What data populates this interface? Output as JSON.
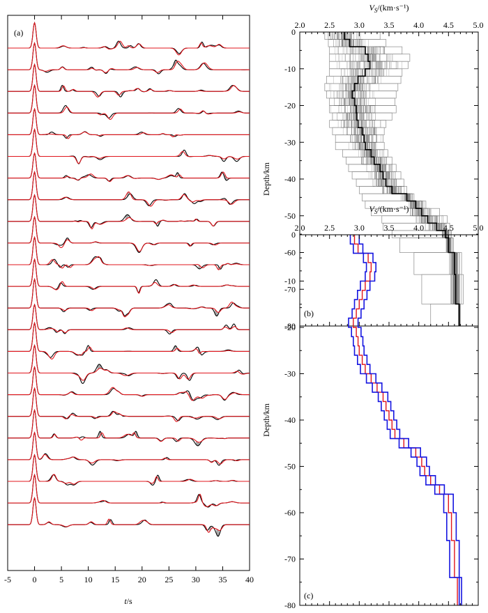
{
  "chart_data": [
    {
      "panel": "a",
      "type": "line",
      "panel_label": "(a)",
      "xlabel": "t/s",
      "xlabel_main": "t",
      "xlabel_unit": "/s",
      "xlim": [
        -5,
        40
      ],
      "xticks": [
        -5,
        0,
        5,
        10,
        15,
        20,
        25,
        30,
        35,
        40
      ],
      "trace_count": 23,
      "series": [
        {
          "name": "observed",
          "color": "#000000"
        },
        {
          "name": "synthetic",
          "color": "#e0141b"
        }
      ],
      "misfit_fill_color": "#a8a8a8",
      "grid": false,
      "legend": "none"
    },
    {
      "panel": "b",
      "type": "line",
      "panel_label": "(b)",
      "xlabel_main": "V",
      "xlabel_sub": "S",
      "xlabel_unit": "/(km·s⁻¹)",
      "ylabel": "Depth/km",
      "xlim": [
        2.0,
        5.0
      ],
      "ylim": [
        -80,
        0
      ],
      "xticks": [
        "2.0",
        "2.5",
        "3.0",
        "3.5",
        "4.0",
        "4.5",
        "5.0"
      ],
      "yticks": [
        "0",
        "-10",
        "-20",
        "-30",
        "-40",
        "-50",
        "-60",
        "-70",
        "-80"
      ],
      "layer_boundaries_km": [
        0,
        -2,
        -4,
        -6,
        -8,
        -10,
        -12,
        -14,
        -16,
        -18,
        -20,
        -22,
        -24,
        -26,
        -28,
        -30,
        -32,
        -34,
        -36,
        -38,
        -40,
        -42,
        -44,
        -46,
        -48,
        -50,
        -52,
        -54,
        -56,
        -60,
        -66,
        -74,
        -80
      ],
      "ensemble_range": {
        "vs_min": [
          2.42,
          2.48,
          2.5,
          2.5,
          2.5,
          2.5,
          2.45,
          2.42,
          2.45,
          2.5,
          2.5,
          2.55,
          2.5,
          2.55,
          2.6,
          2.6,
          2.72,
          2.78,
          2.82,
          2.88,
          2.95,
          3.0,
          3.05,
          3.1,
          3.2,
          3.38,
          3.4,
          3.55,
          3.68,
          3.92,
          4.05,
          4.2
        ],
        "vs_max": [
          3.35,
          3.45,
          3.72,
          3.85,
          3.82,
          3.72,
          3.7,
          3.65,
          3.62,
          3.6,
          3.62,
          3.55,
          3.45,
          3.42,
          3.4,
          3.42,
          3.48,
          3.55,
          3.62,
          3.7,
          3.75,
          3.8,
          3.92,
          4.12,
          4.35,
          4.48,
          4.52,
          4.55,
          4.58,
          4.72,
          4.75,
          4.7
        ]
      },
      "density_peak": {
        "vs": [
          2.75,
          2.84,
          3.1,
          3.15,
          3.18,
          3.1,
          2.98,
          2.92,
          2.88,
          2.92,
          2.95,
          2.96,
          2.98,
          3.05,
          3.08,
          3.1,
          3.2,
          3.25,
          3.35,
          3.4,
          3.45,
          3.55,
          3.8,
          3.95,
          4.05,
          4.15,
          4.3,
          4.45,
          4.5,
          4.6,
          4.62,
          4.68
        ]
      },
      "grid": false,
      "legend": "none"
    },
    {
      "panel": "c",
      "type": "line",
      "panel_label": "(c)",
      "xlabel_main": "V",
      "xlabel_sub": "S",
      "xlabel_unit": "/(km·s⁻¹)",
      "ylabel": "Depth/km",
      "xlim": [
        2.0,
        5.0
      ],
      "ylim": [
        -80,
        0
      ],
      "xticks": [
        "2.0",
        "2.5",
        "3.0",
        "3.5",
        "4.0",
        "4.5",
        "5.0"
      ],
      "yticks": [
        "0",
        "-10",
        "-20",
        "-30",
        "-40",
        "-50",
        "-60",
        "-70",
        "-80"
      ],
      "layer_boundaries_km": [
        0,
        -2,
        -4,
        -6,
        -8,
        -10,
        -12,
        -14,
        -16,
        -18,
        -20,
        -22,
        -24,
        -26,
        -28,
        -30,
        -32,
        -34,
        -36,
        -38,
        -40,
        -42,
        -44,
        -46,
        -48,
        -50,
        -52,
        -54,
        -56,
        -60,
        -66,
        -74,
        -80
      ],
      "series": [
        {
          "name": "mean",
          "color": "#e0141b",
          "vs": [
            2.92,
            2.98,
            3.15,
            3.2,
            3.18,
            3.1,
            3.05,
            3.0,
            2.95,
            2.9,
            2.95,
            2.98,
            3.0,
            3.05,
            3.1,
            3.2,
            3.3,
            3.4,
            3.45,
            3.5,
            3.55,
            3.6,
            3.75,
            3.95,
            4.05,
            4.1,
            4.2,
            4.35,
            4.5,
            4.55,
            4.6,
            4.65
          ]
        },
        {
          "name": "lower bound",
          "color": "#1515e0",
          "vs": [
            2.85,
            2.9,
            3.07,
            3.12,
            3.1,
            3.02,
            2.97,
            2.92,
            2.88,
            2.82,
            2.87,
            2.9,
            2.92,
            2.97,
            3.02,
            3.12,
            3.22,
            3.32,
            3.37,
            3.42,
            3.47,
            3.52,
            3.67,
            3.87,
            3.97,
            4.02,
            4.12,
            4.27,
            4.42,
            4.47,
            4.52,
            4.68
          ]
        },
        {
          "name": "upper bound",
          "color": "#1515e0",
          "vs": [
            3.0,
            3.06,
            3.23,
            3.28,
            3.26,
            3.18,
            3.13,
            3.08,
            3.03,
            2.98,
            3.03,
            3.06,
            3.08,
            3.13,
            3.18,
            3.28,
            3.38,
            3.48,
            3.53,
            3.58,
            3.63,
            3.68,
            3.83,
            4.03,
            4.13,
            4.18,
            4.28,
            4.43,
            4.58,
            4.63,
            4.68,
            4.72
          ]
        }
      ],
      "grid": false,
      "legend": "none"
    }
  ]
}
